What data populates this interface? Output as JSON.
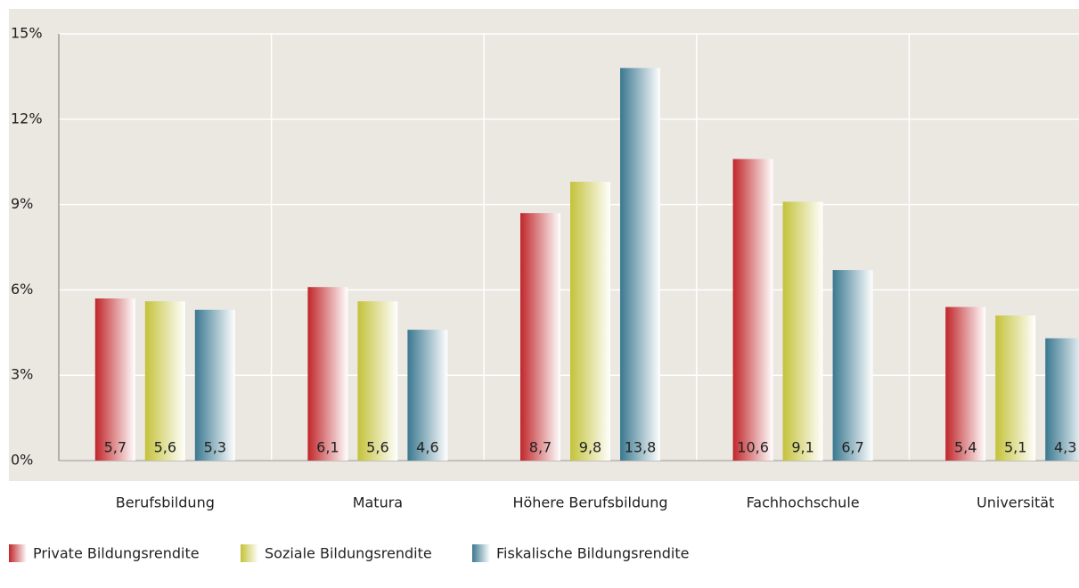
{
  "chart_data": {
    "type": "bar",
    "categories": [
      "Berufsbildung",
      "Matura",
      "Höhere Berufsbildung",
      "Fachhochschule",
      "Universität"
    ],
    "series": [
      {
        "name": "Private Bildungsrendite",
        "color": "#c0262a",
        "values": [
          5.7,
          6.1,
          8.7,
          10.6,
          5.4
        ],
        "value_labels": [
          "5,7",
          "6,1",
          "8,7",
          "10,6",
          "5,4"
        ]
      },
      {
        "name": "Soziale Bildungsrendite",
        "color": "#c4c23a",
        "values": [
          5.6,
          5.6,
          9.8,
          9.1,
          5.1
        ],
        "value_labels": [
          "5,6",
          "5,6",
          "9,8",
          "9,1",
          "5,1"
        ]
      },
      {
        "name": "Fiskalische Bildungsrendite",
        "color": "#3a7890",
        "values": [
          5.3,
          4.6,
          13.8,
          6.7,
          4.3
        ],
        "value_labels": [
          "5,3",
          "4,6",
          "13,8",
          "6,7",
          "4,3"
        ]
      }
    ],
    "ylim": [
      0,
      15
    ],
    "yticks": [
      {
        "value": 0,
        "label": "0%"
      },
      {
        "value": 3,
        "label": "3%"
      },
      {
        "value": 6,
        "label": "6%"
      },
      {
        "value": 9,
        "label": "9%"
      },
      {
        "value": 12,
        "label": "12%"
      },
      {
        "value": 15,
        "label": "15%"
      }
    ],
    "grid": true,
    "legend": "bottom-left"
  }
}
